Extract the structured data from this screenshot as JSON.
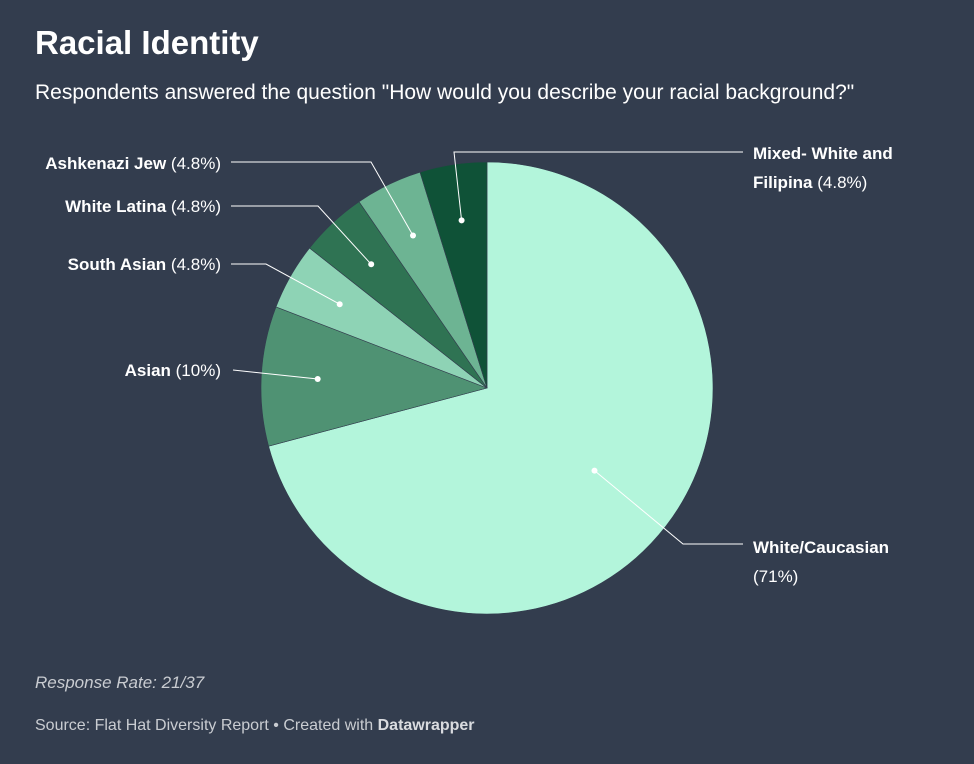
{
  "header": {
    "title": "Racial Identity",
    "subtitle": "Respondents answered the question \"How would you describe your racial background?\""
  },
  "chart_data": {
    "type": "pie",
    "title": "Racial Identity",
    "subtitle": "Respondents answered the question \"How would you describe your racial background?\"",
    "slices": [
      {
        "label": "White/Caucasian",
        "value": 71,
        "display": "(71%)",
        "color": "#b3f5db"
      },
      {
        "label": "Asian",
        "value": 10,
        "display": "(10%)",
        "color": "#4f9273"
      },
      {
        "label": "South Asian",
        "value": 4.8,
        "display": "(4.8%)",
        "color": "#8ed3b5"
      },
      {
        "label": "White Latina",
        "value": 4.8,
        "display": "(4.8%)",
        "color": "#2f7353"
      },
      {
        "label": "Ashkenazi Jew",
        "value": 4.8,
        "display": "(4.8%)",
        "color": "#6db493"
      },
      {
        "label": "Mixed- White and Filipina",
        "value": 4.8,
        "display": "(4.8%)",
        "color": "#0f5237"
      }
    ]
  },
  "notes": {
    "response_rate": "Response Rate: 21/37"
  },
  "footer": {
    "source_text": "Source: Flat Hat Diversity Report • Created with ",
    "brand": "Datawrapper"
  }
}
